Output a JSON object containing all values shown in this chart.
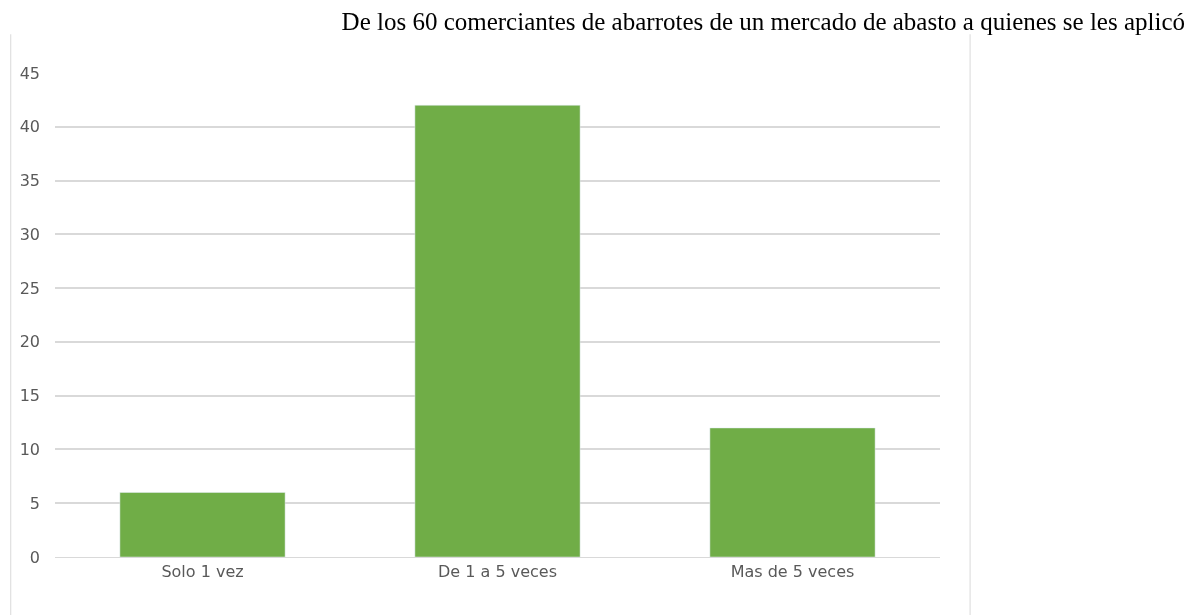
{
  "chart_data": {
    "type": "bar",
    "title": "De los 60 comerciantes de abarrotes de un mercado de abasto a quienes se les aplicó",
    "categories": [
      "Solo 1 vez",
      "De 1 a 5 veces",
      "Mas de 5 veces"
    ],
    "values": [
      6,
      42,
      12
    ],
    "color": "#70ad47",
    "ylim": [
      0,
      45
    ],
    "yticks": [
      0,
      5,
      10,
      15,
      20,
      25,
      30,
      35,
      40,
      45
    ],
    "grid": "y"
  }
}
